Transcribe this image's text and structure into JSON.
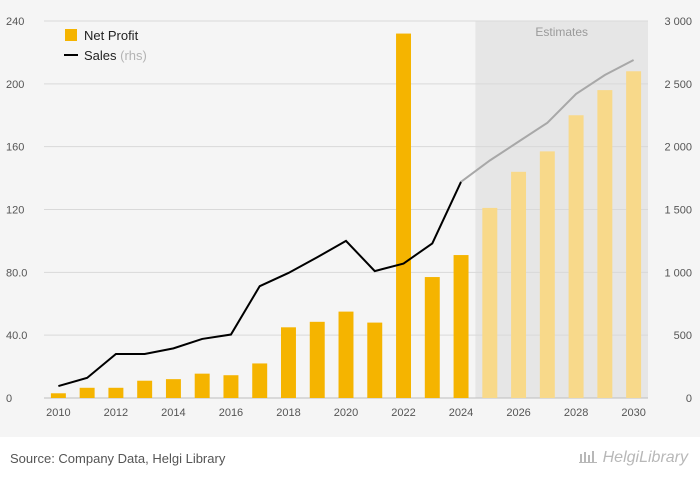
{
  "chart_data": {
    "type": "bar",
    "categories": [
      "2010",
      "2011",
      "2012",
      "2013",
      "2014",
      "2015",
      "2016",
      "2017",
      "2018",
      "2019",
      "2020",
      "2021",
      "2022",
      "2023",
      "2024",
      "2025",
      "2026",
      "2027",
      "2028",
      "2029",
      "2030"
    ],
    "x_tick_labels": [
      "2010",
      "2012",
      "2014",
      "2016",
      "2018",
      "2020",
      "2022",
      "2024",
      "2026",
      "2028",
      "2030"
    ],
    "series": [
      {
        "name": "Net Profit",
        "type": "bar",
        "axis": "left",
        "values": [
          3,
          6.5,
          6.5,
          11,
          12,
          15.5,
          14.5,
          22,
          45,
          48.5,
          55,
          48,
          232,
          77,
          91,
          121,
          144,
          157,
          180,
          196,
          208
        ],
        "color": "#f5b400",
        "estimate_color": "#f8d98a"
      },
      {
        "name": "Sales",
        "name_suffix": "(rhs)",
        "type": "line",
        "axis": "right",
        "values": [
          95,
          160,
          350,
          350,
          395,
          470,
          505,
          890,
          995,
          1120,
          1250,
          1010,
          1070,
          1230,
          1720,
          1890,
          2040,
          2190,
          2420,
          2570,
          2690
        ],
        "color": "#000000",
        "estimate_color": "#a8a8a8"
      }
    ],
    "estimate_start_index": 15,
    "estimates_label": "Estimates",
    "y_left": {
      "min": 0,
      "max": 240,
      "ticks": [
        "0",
        "40.0",
        "80.0",
        "120",
        "160",
        "200",
        "240"
      ]
    },
    "y_right": {
      "min": 0,
      "max": 3000,
      "ticks": [
        "0",
        "500",
        "1 000",
        "1 500",
        "2 000",
        "2 500",
        "3 000"
      ]
    },
    "grid": true,
    "legend_position": "top-left",
    "title": "",
    "xlabel": "",
    "ylabel": ""
  },
  "footer": {
    "source": "Source: Company Data, Helgi Library",
    "brand": "HelgiLibrary"
  },
  "colors": {
    "background": "#f5f5f5",
    "estimates_band": "#e6e6e6",
    "gridline": "#d9d9d9",
    "axis_text": "#555555"
  }
}
